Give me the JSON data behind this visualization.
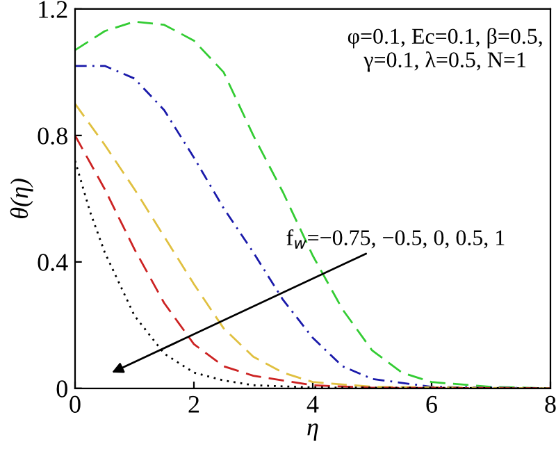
{
  "chart_data": {
    "type": "line",
    "xlabel": "η",
    "ylabel": "θ(η)",
    "xlim": [
      0,
      8
    ],
    "ylim": [
      0,
      1.2
    ],
    "xticks": [
      0,
      2,
      4,
      6,
      8
    ],
    "yticks": [
      0,
      0.4,
      0.8,
      1.2
    ],
    "grid": false,
    "legend": false,
    "marker": "none",
    "annotations": [
      "φ=0.1, Ec=0.1, β=0.5,\nγ=0.1, λ=0.5, N=1",
      "f$_{w}$=−0.75, −0.5, 0, 0.5, 1"
    ],
    "series": [
      {
        "color": "#33cc33",
        "line_style": "dashed",
        "x": [
          0,
          0.5,
          1,
          1.5,
          2,
          2.5,
          3,
          3.5,
          4,
          4.5,
          5,
          5.5,
          6,
          7,
          8
        ],
        "values": [
          1.07,
          1.13,
          1.16,
          1.15,
          1.1,
          1.0,
          0.8,
          0.62,
          0.42,
          0.25,
          0.12,
          0.05,
          0.02,
          0.005,
          0
        ]
      },
      {
        "color": "#1a1aaa",
        "line_style": "dashdot",
        "x": [
          0,
          0.5,
          1,
          1.5,
          2,
          2.5,
          3,
          3.5,
          4,
          4.5,
          5,
          6,
          8
        ],
        "values": [
          1.02,
          1.02,
          0.98,
          0.88,
          0.73,
          0.57,
          0.43,
          0.28,
          0.16,
          0.07,
          0.03,
          0.005,
          0
        ]
      },
      {
        "color": "#e0c040",
        "line_style": "dashed",
        "x": [
          0,
          0.5,
          1,
          1.5,
          2,
          2.5,
          3,
          3.5,
          4,
          5,
          8
        ],
        "values": [
          0.9,
          0.77,
          0.63,
          0.48,
          0.33,
          0.19,
          0.1,
          0.05,
          0.02,
          0.005,
          0
        ]
      },
      {
        "color": "#cc2222",
        "line_style": "dashed",
        "x": [
          0,
          0.5,
          1,
          1.5,
          2,
          2.5,
          3,
          4,
          5,
          8
        ],
        "values": [
          0.8,
          0.63,
          0.44,
          0.27,
          0.14,
          0.07,
          0.04,
          0.01,
          0.002,
          0
        ]
      },
      {
        "color": "#000000",
        "line_style": "dotted",
        "x": [
          0,
          0.25,
          0.5,
          1,
          1.5,
          2,
          2.5,
          3,
          4,
          8
        ],
        "values": [
          0.72,
          0.56,
          0.43,
          0.23,
          0.11,
          0.05,
          0.025,
          0.01,
          0.003,
          0
        ]
      }
    ]
  }
}
